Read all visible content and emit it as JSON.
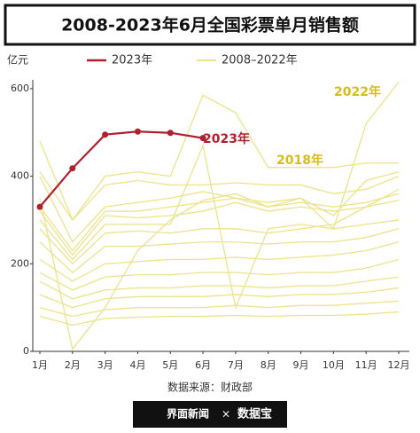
{
  "chart_data": {
    "type": "line",
    "title": "2008-2023年6月全国彩票单月销售额",
    "unit_label": "亿元",
    "source": "数据来源：财政部",
    "footer": [
      "界面新闻",
      "×",
      "数据宝"
    ],
    "categories": [
      "1月",
      "2月",
      "3月",
      "4月",
      "5月",
      "6月",
      "7月",
      "8月",
      "9月",
      "10月",
      "11月",
      "12月"
    ],
    "ylim": [
      0,
      620
    ],
    "yticks": [
      0,
      200,
      400,
      600
    ],
    "series": [
      {
        "name": "2023年",
        "color": "#b0202e",
        "values": [
          330,
          418,
          495,
          502,
          499,
          487,
          null,
          null,
          null,
          null,
          null,
          null
        ]
      },
      {
        "name": "2008–2022年",
        "color": "#ede38a",
        "lines": [
          [
            400,
            250,
            330,
            340,
            350,
            365,
            350,
            340,
            350,
            280,
            520,
            615
          ],
          [
            410,
            300,
            400,
            410,
            400,
            585,
            545,
            420,
            420,
            420,
            430,
            430
          ],
          [
            480,
            300,
            380,
            390,
            380,
            380,
            385,
            380,
            380,
            360,
            370,
            400
          ],
          [
            350,
            5,
            100,
            230,
            300,
            345,
            360,
            330,
            350,
            310,
            390,
            410
          ],
          [
            330,
            230,
            320,
            320,
            330,
            340,
            350,
            330,
            340,
            330,
            340,
            360
          ],
          [
            320,
            220,
            310,
            305,
            310,
            320,
            340,
            320,
            330,
            320,
            330,
            345
          ],
          [
            300,
            210,
            290,
            290,
            290,
            470,
            100,
            280,
            290,
            280,
            290,
            300
          ],
          [
            280,
            200,
            270,
            275,
            270,
            280,
            280,
            270,
            280,
            290,
            330,
            370
          ],
          [
            250,
            180,
            240,
            240,
            245,
            250,
            250,
            245,
            250,
            250,
            260,
            280
          ],
          [
            210,
            160,
            200,
            205,
            210,
            210,
            215,
            210,
            215,
            220,
            230,
            250
          ],
          [
            180,
            140,
            170,
            175,
            175,
            180,
            180,
            175,
            180,
            180,
            190,
            210
          ],
          [
            160,
            120,
            140,
            145,
            145,
            150,
            150,
            145,
            150,
            150,
            160,
            170
          ],
          [
            130,
            100,
            120,
            125,
            125,
            125,
            130,
            125,
            130,
            130,
            135,
            145
          ],
          [
            100,
            80,
            95,
            100,
            100,
            100,
            105,
            100,
            105,
            105,
            110,
            115
          ],
          [
            80,
            60,
            75,
            78,
            80,
            80,
            82,
            80,
            82,
            82,
            85,
            90
          ]
        ]
      }
    ],
    "annotations": [
      {
        "text": "2023年",
        "color": "#b0202e"
      },
      {
        "text": "2022年",
        "color": "#d9bc1c"
      },
      {
        "text": "2018年",
        "color": "#d9bc1c"
      }
    ]
  }
}
